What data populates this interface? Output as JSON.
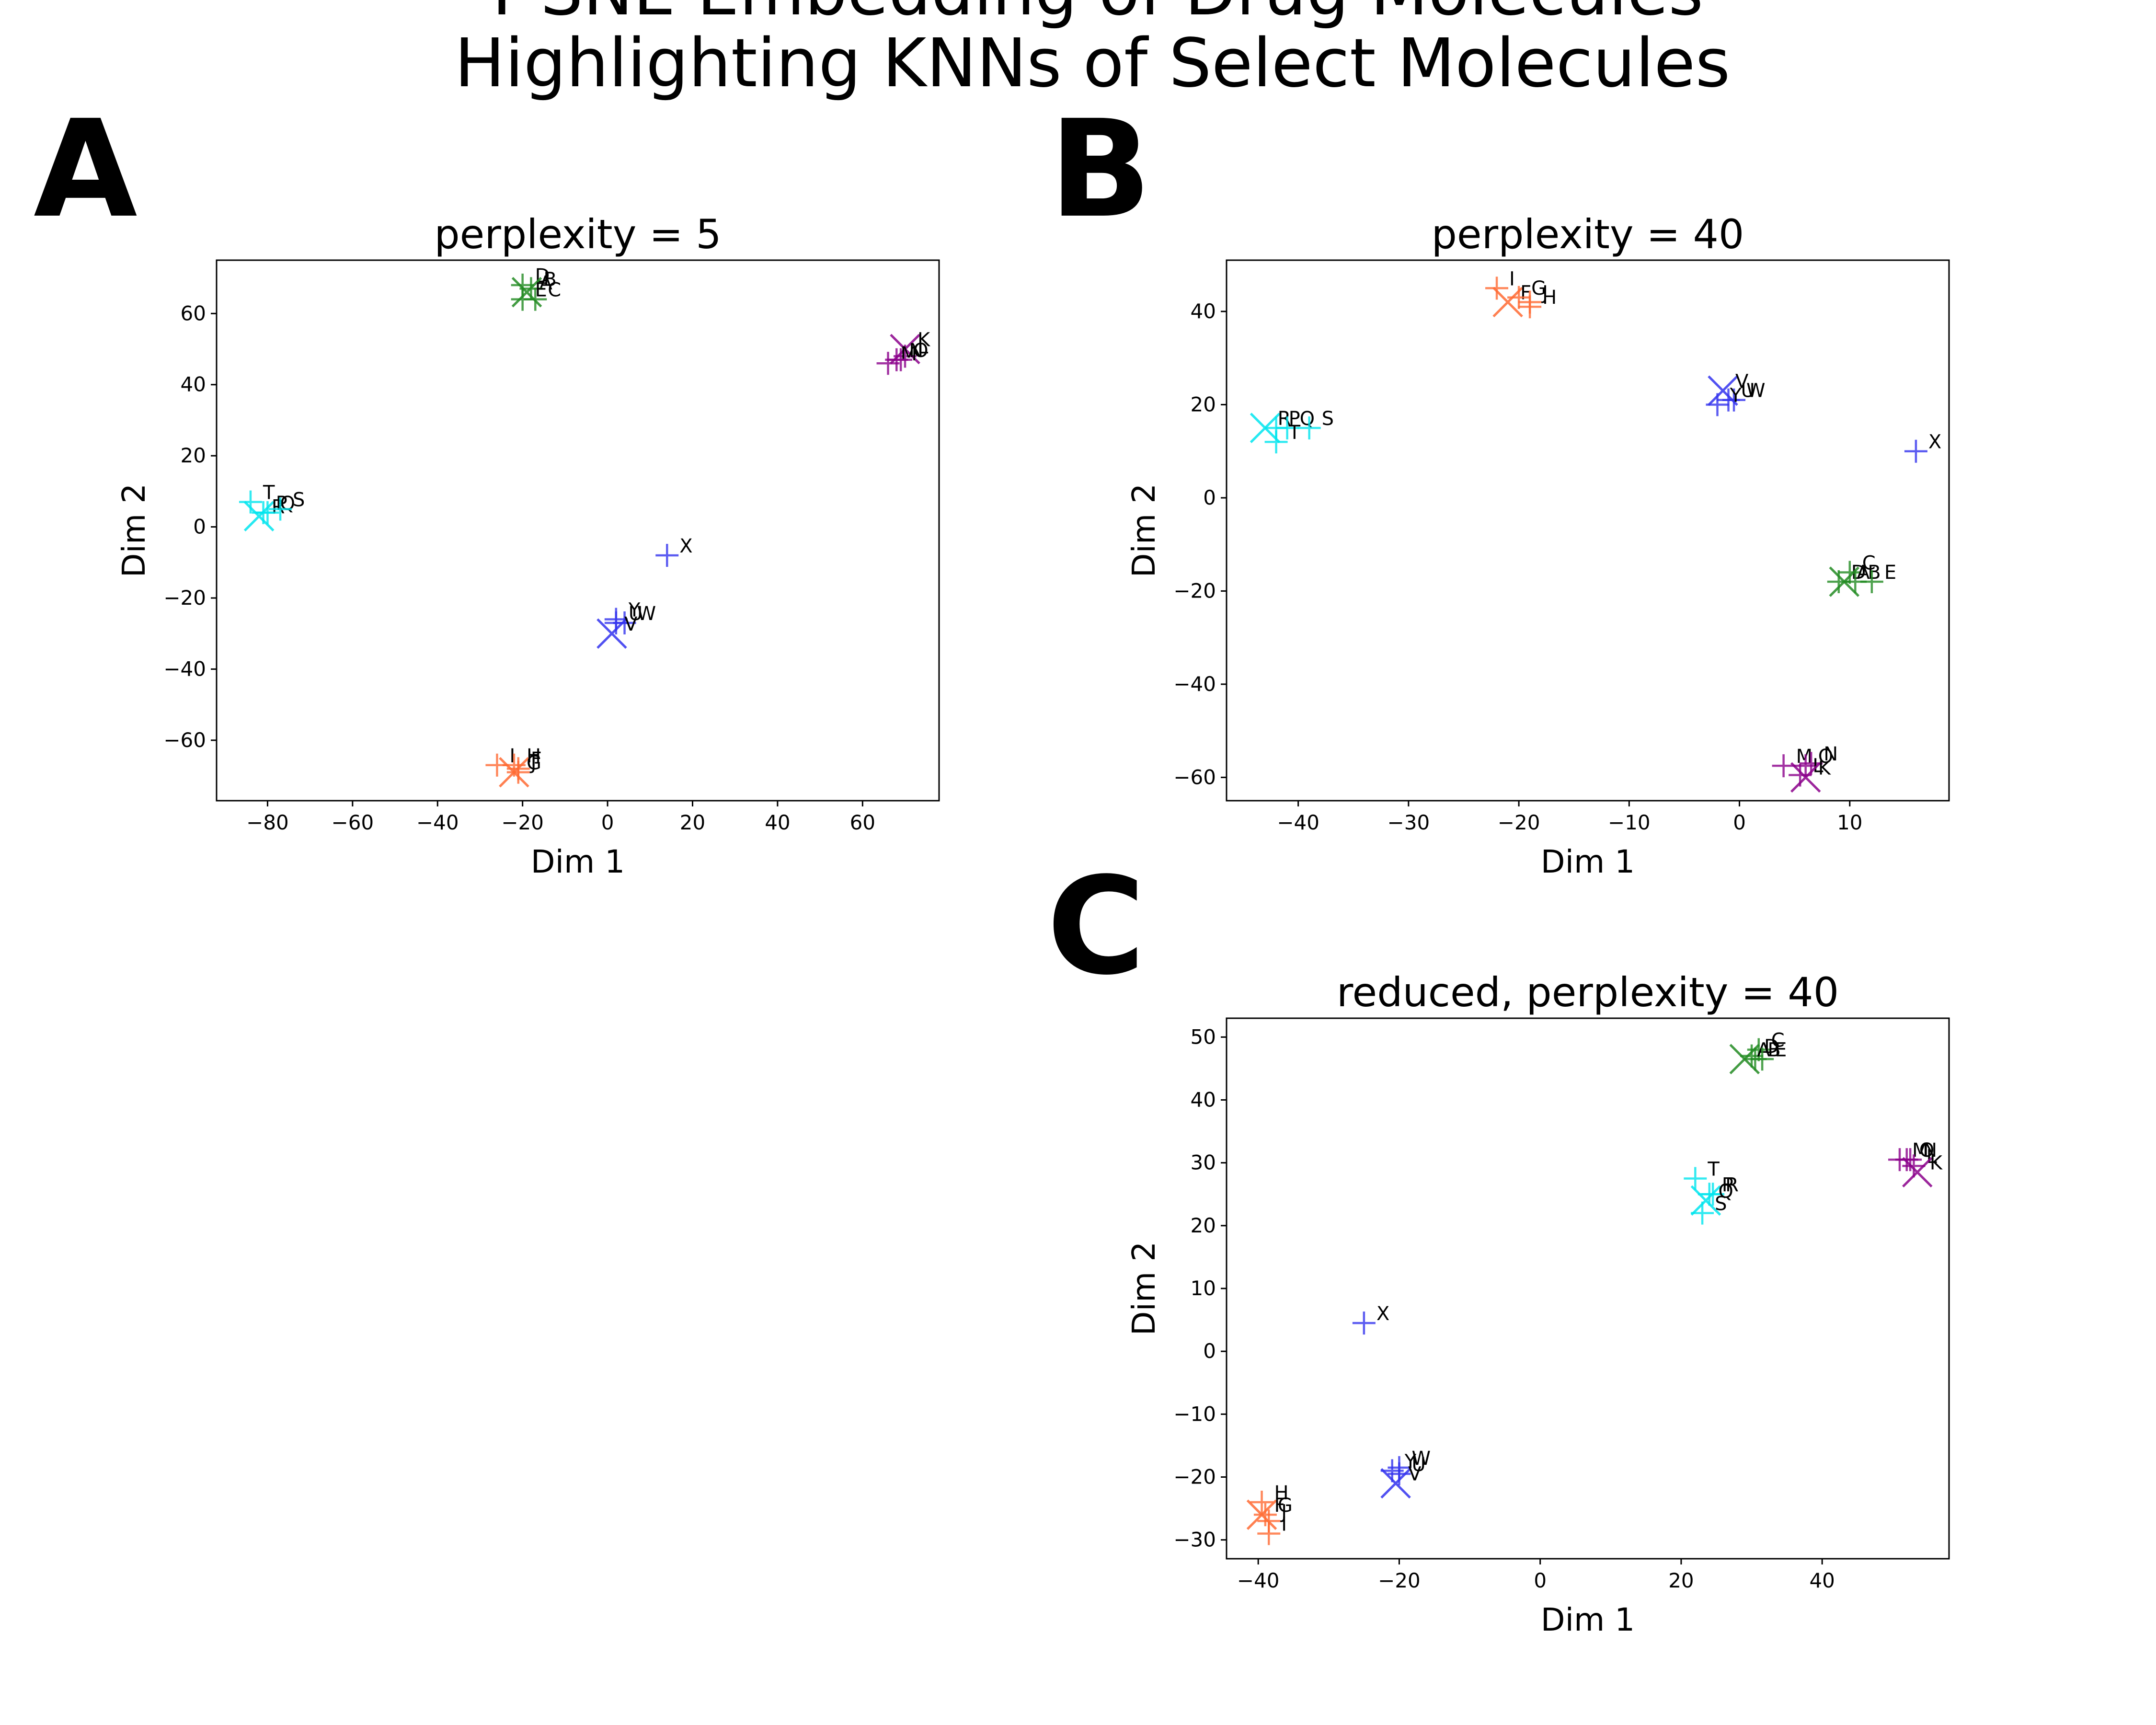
{
  "figure": {
    "suptitle_lines": [
      "T-SNE Embedding of Drug Molecules",
      "Highlighting KNNs of Select Molecules"
    ]
  },
  "chart_data": [
    {
      "type": "scatter",
      "panel": "A",
      "title": "perplexity = 5",
      "xlabel": "Dim 1",
      "ylabel": "Dim 2",
      "xlim": [
        -92,
        78
      ],
      "ylim": [
        -77,
        75
      ],
      "xticks": [
        -80,
        -60,
        -40,
        -20,
        0,
        20,
        40,
        60
      ],
      "yticks": [
        -60,
        -40,
        -20,
        0,
        20,
        40,
        60
      ],
      "series": [
        {
          "color": "#228b22",
          "points": [
            {
              "label": "D",
              "x": -20,
              "y": 68
            },
            {
              "label": "A",
              "x": -19,
              "y": 66,
              "marker": "x"
            },
            {
              "label": "B",
              "x": -18,
              "y": 67
            },
            {
              "label": "E",
              "x": -20,
              "y": 64
            },
            {
              "label": "C",
              "x": -17,
              "y": 64
            }
          ]
        },
        {
          "color": "#8b008b",
          "points": [
            {
              "label": "K",
              "x": 70,
              "y": 50,
              "marker": "x"
            },
            {
              "label": "L",
              "x": 70,
              "y": 48
            },
            {
              "label": "M",
              "x": 66,
              "y": 46
            },
            {
              "label": "N",
              "x": 68,
              "y": 47
            },
            {
              "label": "O",
              "x": 69,
              "y": 47
            }
          ]
        },
        {
          "color": "#00e5ee",
          "points": [
            {
              "label": "T",
              "x": -84,
              "y": 7
            },
            {
              "label": "P",
              "x": -81,
              "y": 4
            },
            {
              "label": "R",
              "x": -82,
              "y": 3,
              "marker": "x"
            },
            {
              "label": "Q",
              "x": -80,
              "y": 4
            },
            {
              "label": "S",
              "x": -77,
              "y": 5
            }
          ]
        },
        {
          "color": "#3333ee",
          "points": [
            {
              "label": "X",
              "x": 14,
              "y": -8
            },
            {
              "label": "Y",
              "x": 2,
              "y": -26
            },
            {
              "label": "U",
              "x": 2,
              "y": -27
            },
            {
              "label": "W",
              "x": 4,
              "y": -27
            },
            {
              "label": "V",
              "x": 1,
              "y": -30,
              "marker": "x"
            }
          ]
        },
        {
          "color": "#ff6a33",
          "points": [
            {
              "label": "I",
              "x": -26,
              "y": -67
            },
            {
              "label": "H",
              "x": -22,
              "y": -67
            },
            {
              "label": "F",
              "x": -21,
              "y": -68
            },
            {
              "label": "G",
              "x": -22,
              "y": -69,
              "marker": "x"
            },
            {
              "label": "J",
              "x": -21,
              "y": -69
            }
          ]
        }
      ]
    },
    {
      "type": "scatter",
      "panel": "B",
      "title": "perplexity = 40",
      "xlabel": "Dim 1",
      "ylabel": "Dim 2",
      "xlim": [
        -46.5,
        19
      ],
      "ylim": [
        -65,
        51
      ],
      "xticks": [
        -40,
        -30,
        -20,
        -10,
        0,
        10
      ],
      "yticks": [
        -60,
        -40,
        -20,
        0,
        20,
        40
      ],
      "series": [
        {
          "color": "#ff6a33",
          "points": [
            {
              "label": "I",
              "x": -22,
              "y": 45
            },
            {
              "label": "F",
              "x": -21,
              "y": 42,
              "marker": "x"
            },
            {
              "label": "G",
              "x": -20,
              "y": 43
            },
            {
              "label": "J",
              "x": -19,
              "y": 42
            },
            {
              "label": "H",
              "x": -19,
              "y": 41
            }
          ]
        },
        {
          "color": "#00e5ee",
          "points": [
            {
              "label": "R",
              "x": -43,
              "y": 15,
              "marker": "x"
            },
            {
              "label": "P",
              "x": -42,
              "y": 15
            },
            {
              "label": "Q",
              "x": -41,
              "y": 15
            },
            {
              "label": "S",
              "x": -39,
              "y": 15
            },
            {
              "label": "T",
              "x": -42,
              "y": 12
            }
          ]
        },
        {
          "color": "#3333ee",
          "points": [
            {
              "label": "V",
              "x": -1.5,
              "y": 23,
              "marker": "x"
            },
            {
              "label": "U",
              "x": -1,
              "y": 21
            },
            {
              "label": "W",
              "x": -0.5,
              "y": 21
            },
            {
              "label": "Y",
              "x": -2,
              "y": 20
            },
            {
              "label": "X",
              "x": 16,
              "y": 10
            }
          ]
        },
        {
          "color": "#228b22",
          "points": [
            {
              "label": "C",
              "x": 10,
              "y": -16
            },
            {
              "label": "D",
              "x": 9,
              "y": -18
            },
            {
              "label": "A",
              "x": 9.5,
              "y": -18,
              "marker": "x"
            },
            {
              "label": "B",
              "x": 10.5,
              "y": -18
            },
            {
              "label": "E",
              "x": 12,
              "y": -18
            }
          ]
        },
        {
          "color": "#8b008b",
          "points": [
            {
              "label": "M",
              "x": 4,
              "y": -57.5
            },
            {
              "label": "O",
              "x": 6,
              "y": -57.5
            },
            {
              "label": "N",
              "x": 6.5,
              "y": -57
            },
            {
              "label": "L",
              "x": 5.5,
              "y": -59.5
            },
            {
              "label": "K",
              "x": 6,
              "y": -60,
              "marker": "x"
            }
          ]
        }
      ]
    },
    {
      "type": "scatter",
      "panel": "C",
      "title": "reduced, perplexity = 40",
      "xlabel": "Dim 1",
      "ylabel": "Dim 2",
      "xlim": [
        -44.5,
        58
      ],
      "ylim": [
        -33,
        53
      ],
      "xticks": [
        -40,
        -20,
        0,
        20,
        40
      ],
      "yticks": [
        -30,
        -20,
        -10,
        0,
        10,
        20,
        30,
        40,
        50
      ],
      "series": [
        {
          "color": "#228b22",
          "points": [
            {
              "label": "C",
              "x": 31,
              "y": 48
            },
            {
              "label": "D",
              "x": 30,
              "y": 47
            },
            {
              "label": "A",
              "x": 29,
              "y": 46.5,
              "marker": "x"
            },
            {
              "label": "B",
              "x": 30.5,
              "y": 46.5
            },
            {
              "label": "E",
              "x": 31.5,
              "y": 46.5
            }
          ]
        },
        {
          "color": "#8b008b",
          "points": [
            {
              "label": "M",
              "x": 51,
              "y": 30.5
            },
            {
              "label": "O",
              "x": 52,
              "y": 30.5
            },
            {
              "label": "N",
              "x": 52.5,
              "y": 30.5
            },
            {
              "label": "L",
              "x": 53,
              "y": 29.5
            },
            {
              "label": "K",
              "x": 53.5,
              "y": 28.5,
              "marker": "x"
            }
          ]
        },
        {
          "color": "#00e5ee",
          "points": [
            {
              "label": "T",
              "x": 22,
              "y": 27.5
            },
            {
              "label": "P",
              "x": 24,
              "y": 25
            },
            {
              "label": "R",
              "x": 24.5,
              "y": 25
            },
            {
              "label": "Q",
              "x": 23.5,
              "y": 24,
              "marker": "x"
            },
            {
              "label": "S",
              "x": 23,
              "y": 22
            }
          ]
        },
        {
          "color": "#3333ee",
          "points": [
            {
              "label": "X",
              "x": -25,
              "y": 4.5
            },
            {
              "label": "Y",
              "x": -21,
              "y": -19
            },
            {
              "label": "W",
              "x": -20,
              "y": -18.5
            },
            {
              "label": "U",
              "x": -20,
              "y": -19.5
            },
            {
              "label": "V",
              "x": -20.5,
              "y": -21,
              "marker": "x"
            }
          ]
        },
        {
          "color": "#ff6a33",
          "points": [
            {
              "label": "H",
              "x": -39.5,
              "y": -24
            },
            {
              "label": "F",
              "x": -39.5,
              "y": -26,
              "marker": "x"
            },
            {
              "label": "G",
              "x": -39,
              "y": -26
            },
            {
              "label": "J",
              "x": -38.5,
              "y": -27
            },
            {
              "label": "I",
              "x": -38.5,
              "y": -29
            }
          ]
        }
      ]
    }
  ]
}
